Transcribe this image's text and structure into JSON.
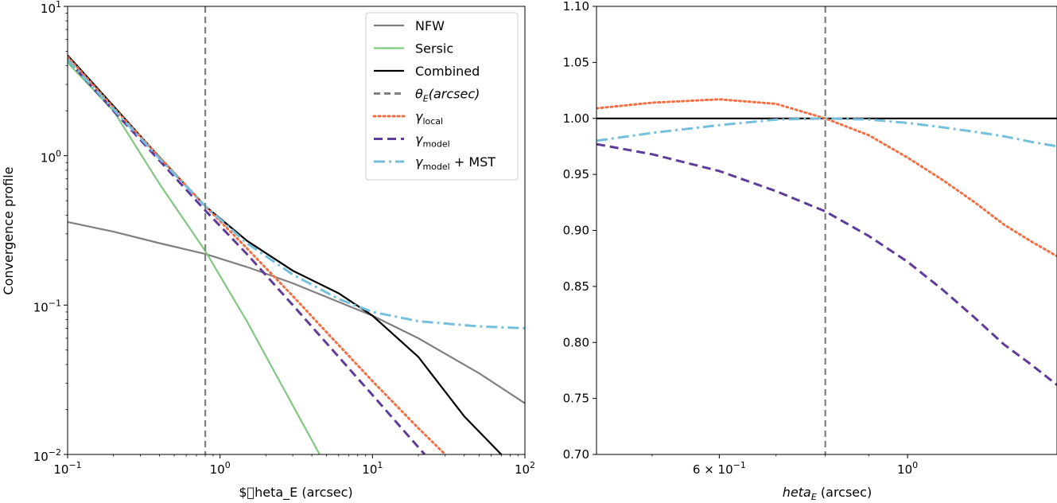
{
  "chart_data": [
    {
      "type": "line",
      "panel": "left",
      "xscale": "log",
      "yscale": "log",
      "xlim": [
        0.1,
        100
      ],
      "ylim": [
        0.01,
        10
      ],
      "xlabel": "$\u0000heta_E (arcsec)",
      "ylabel": "Convergence profile",
      "x_ticks": [
        {
          "value": 0.1,
          "base": "10",
          "exp": "−1"
        },
        {
          "value": 1,
          "base": "10",
          "exp": "0"
        },
        {
          "value": 10,
          "base": "10",
          "exp": "1"
        },
        {
          "value": 100,
          "base": "10",
          "exp": "2"
        }
      ],
      "y_ticks": [
        {
          "value": 0.01,
          "base": "10",
          "exp": "−2"
        },
        {
          "value": 0.1,
          "base": "10",
          "exp": "−1"
        },
        {
          "value": 1,
          "base": "10",
          "exp": "0"
        },
        {
          "value": 10,
          "base": "10",
          "exp": "1"
        }
      ],
      "vline": {
        "x": 0.8,
        "label": "θE(arcsec)",
        "color": "#808080",
        "dash": "dashed"
      },
      "legend": {
        "location": "top-right",
        "entries": [
          {
            "key": "nfw",
            "label": "NFW"
          },
          {
            "key": "sersic",
            "label": "Sersic"
          },
          {
            "key": "combined",
            "label": "Combined"
          },
          {
            "key": "theta",
            "label_main": "θ",
            "label_sub": "E",
            "label_tail": "(arcsec)"
          },
          {
            "key": "local",
            "label_main": "γ",
            "label_sub": "local",
            "label_tail": ""
          },
          {
            "key": "model",
            "label_main": "γ",
            "label_sub": "model",
            "label_tail": ""
          },
          {
            "key": "mst",
            "label_main": "γ",
            "label_sub": "model",
            "label_tail": " + MST"
          }
        ]
      },
      "series": [
        {
          "name": "NFW",
          "key": "nfw",
          "color": "#808080",
          "style": "solid",
          "x": [
            0.1,
            0.2,
            0.4,
            0.8,
            1.5,
            3,
            6,
            10,
            20,
            50,
            100
          ],
          "y": [
            0.36,
            0.31,
            0.26,
            0.22,
            0.18,
            0.14,
            0.105,
            0.085,
            0.06,
            0.035,
            0.022
          ]
        },
        {
          "name": "Sersic",
          "key": "sersic",
          "color": "#7fc97f",
          "style": "solid",
          "x": [
            0.1,
            0.2,
            0.4,
            0.8,
            1.5,
            2.5,
            3.5,
            4.5
          ],
          "y": [
            4.2,
            2.0,
            0.65,
            0.23,
            0.078,
            0.03,
            0.016,
            0.01
          ]
        },
        {
          "name": "Combined",
          "key": "combined",
          "color": "#000000",
          "style": "solid",
          "x": [
            0.1,
            0.2,
            0.4,
            0.8,
            1.5,
            3,
            6,
            10,
            20,
            40,
            70
          ],
          "y": [
            4.7,
            2.15,
            0.98,
            0.46,
            0.27,
            0.17,
            0.12,
            0.085,
            0.045,
            0.018,
            0.01
          ]
        },
        {
          "name": "γlocal",
          "key": "local",
          "color": "#f46d43",
          "style": "dotted",
          "x": [
            0.1,
            0.2,
            0.4,
            0.8,
            1.5,
            3,
            6,
            10,
            20,
            30
          ],
          "y": [
            4.6,
            2.1,
            0.98,
            0.46,
            0.24,
            0.115,
            0.054,
            0.031,
            0.015,
            0.01
          ]
        },
        {
          "name": "γmodel",
          "key": "model",
          "color": "#5e3c99",
          "style": "dashed",
          "x": [
            0.1,
            0.2,
            0.4,
            0.8,
            1.5,
            3,
            6,
            10,
            22
          ],
          "y": [
            4.4,
            2.0,
            0.93,
            0.43,
            0.22,
            0.1,
            0.045,
            0.025,
            0.01
          ]
        },
        {
          "name": "γmodel + MST",
          "key": "mst",
          "color": "#74c0dc",
          "style": "dashdot",
          "x": [
            0.1,
            0.2,
            0.4,
            0.8,
            1.5,
            3,
            6,
            10,
            20,
            50,
            100
          ],
          "y": [
            4.4,
            2.05,
            0.96,
            0.46,
            0.26,
            0.16,
            0.11,
            0.09,
            0.078,
            0.072,
            0.07
          ]
        }
      ]
    },
    {
      "type": "line",
      "panel": "right",
      "xscale": "log",
      "yscale": "linear",
      "xlim": [
        0.43,
        1.5
      ],
      "ylim": [
        0.7,
        1.1
      ],
      "xlabel_main": "heta",
      "xlabel_sub": "E",
      "xlabel_tail": " (arcsec)",
      "x_ticks": [
        {
          "value": 0.6,
          "label": "6 × 10",
          "exp": "−1"
        },
        {
          "value": 1,
          "label": "10",
          "exp": "0"
        }
      ],
      "y_ticks": [
        {
          "value": 0.7,
          "label": "0.70"
        },
        {
          "value": 0.75,
          "label": "0.75"
        },
        {
          "value": 0.8,
          "label": "0.80"
        },
        {
          "value": 0.85,
          "label": "0.85"
        },
        {
          "value": 0.9,
          "label": "0.90"
        },
        {
          "value": 0.95,
          "label": "0.95"
        },
        {
          "value": 1.0,
          "label": "1.00"
        },
        {
          "value": 1.05,
          "label": "1.05"
        },
        {
          "value": 1.1,
          "label": "1.10"
        }
      ],
      "vline": {
        "x": 0.8,
        "color": "#808080",
        "dash": "dashed"
      },
      "series": [
        {
          "name": "Combined",
          "key": "combined",
          "color": "#000000",
          "style": "solid",
          "x": [
            0.43,
            1.5
          ],
          "y": [
            1.0,
            1.0
          ]
        },
        {
          "name": "γlocal",
          "key": "local",
          "color": "#f46d43",
          "style": "dotted",
          "x": [
            0.43,
            0.5,
            0.6,
            0.7,
            0.8,
            0.9,
            1.0,
            1.1,
            1.2,
            1.3,
            1.4,
            1.5
          ],
          "y": [
            1.009,
            1.014,
            1.017,
            1.013,
            1.0,
            0.985,
            0.965,
            0.945,
            0.925,
            0.905,
            0.89,
            0.877
          ]
        },
        {
          "name": "γmodel",
          "key": "model",
          "color": "#5e3c99",
          "style": "dashed",
          "x": [
            0.43,
            0.5,
            0.6,
            0.7,
            0.8,
            0.9,
            1.0,
            1.1,
            1.2,
            1.3,
            1.4,
            1.5
          ],
          "y": [
            0.977,
            0.968,
            0.953,
            0.935,
            0.917,
            0.895,
            0.872,
            0.847,
            0.822,
            0.798,
            0.78,
            0.762
          ]
        },
        {
          "name": "γmodel + MST",
          "key": "mst",
          "color": "#74c0dc",
          "style": "dashdot",
          "x": [
            0.43,
            0.5,
            0.6,
            0.7,
            0.8,
            0.9,
            1.0,
            1.1,
            1.2,
            1.3,
            1.4,
            1.5
          ],
          "y": [
            0.98,
            0.987,
            0.994,
            0.999,
            1.0,
            0.999,
            0.996,
            0.992,
            0.988,
            0.984,
            0.979,
            0.975
          ]
        }
      ]
    }
  ]
}
